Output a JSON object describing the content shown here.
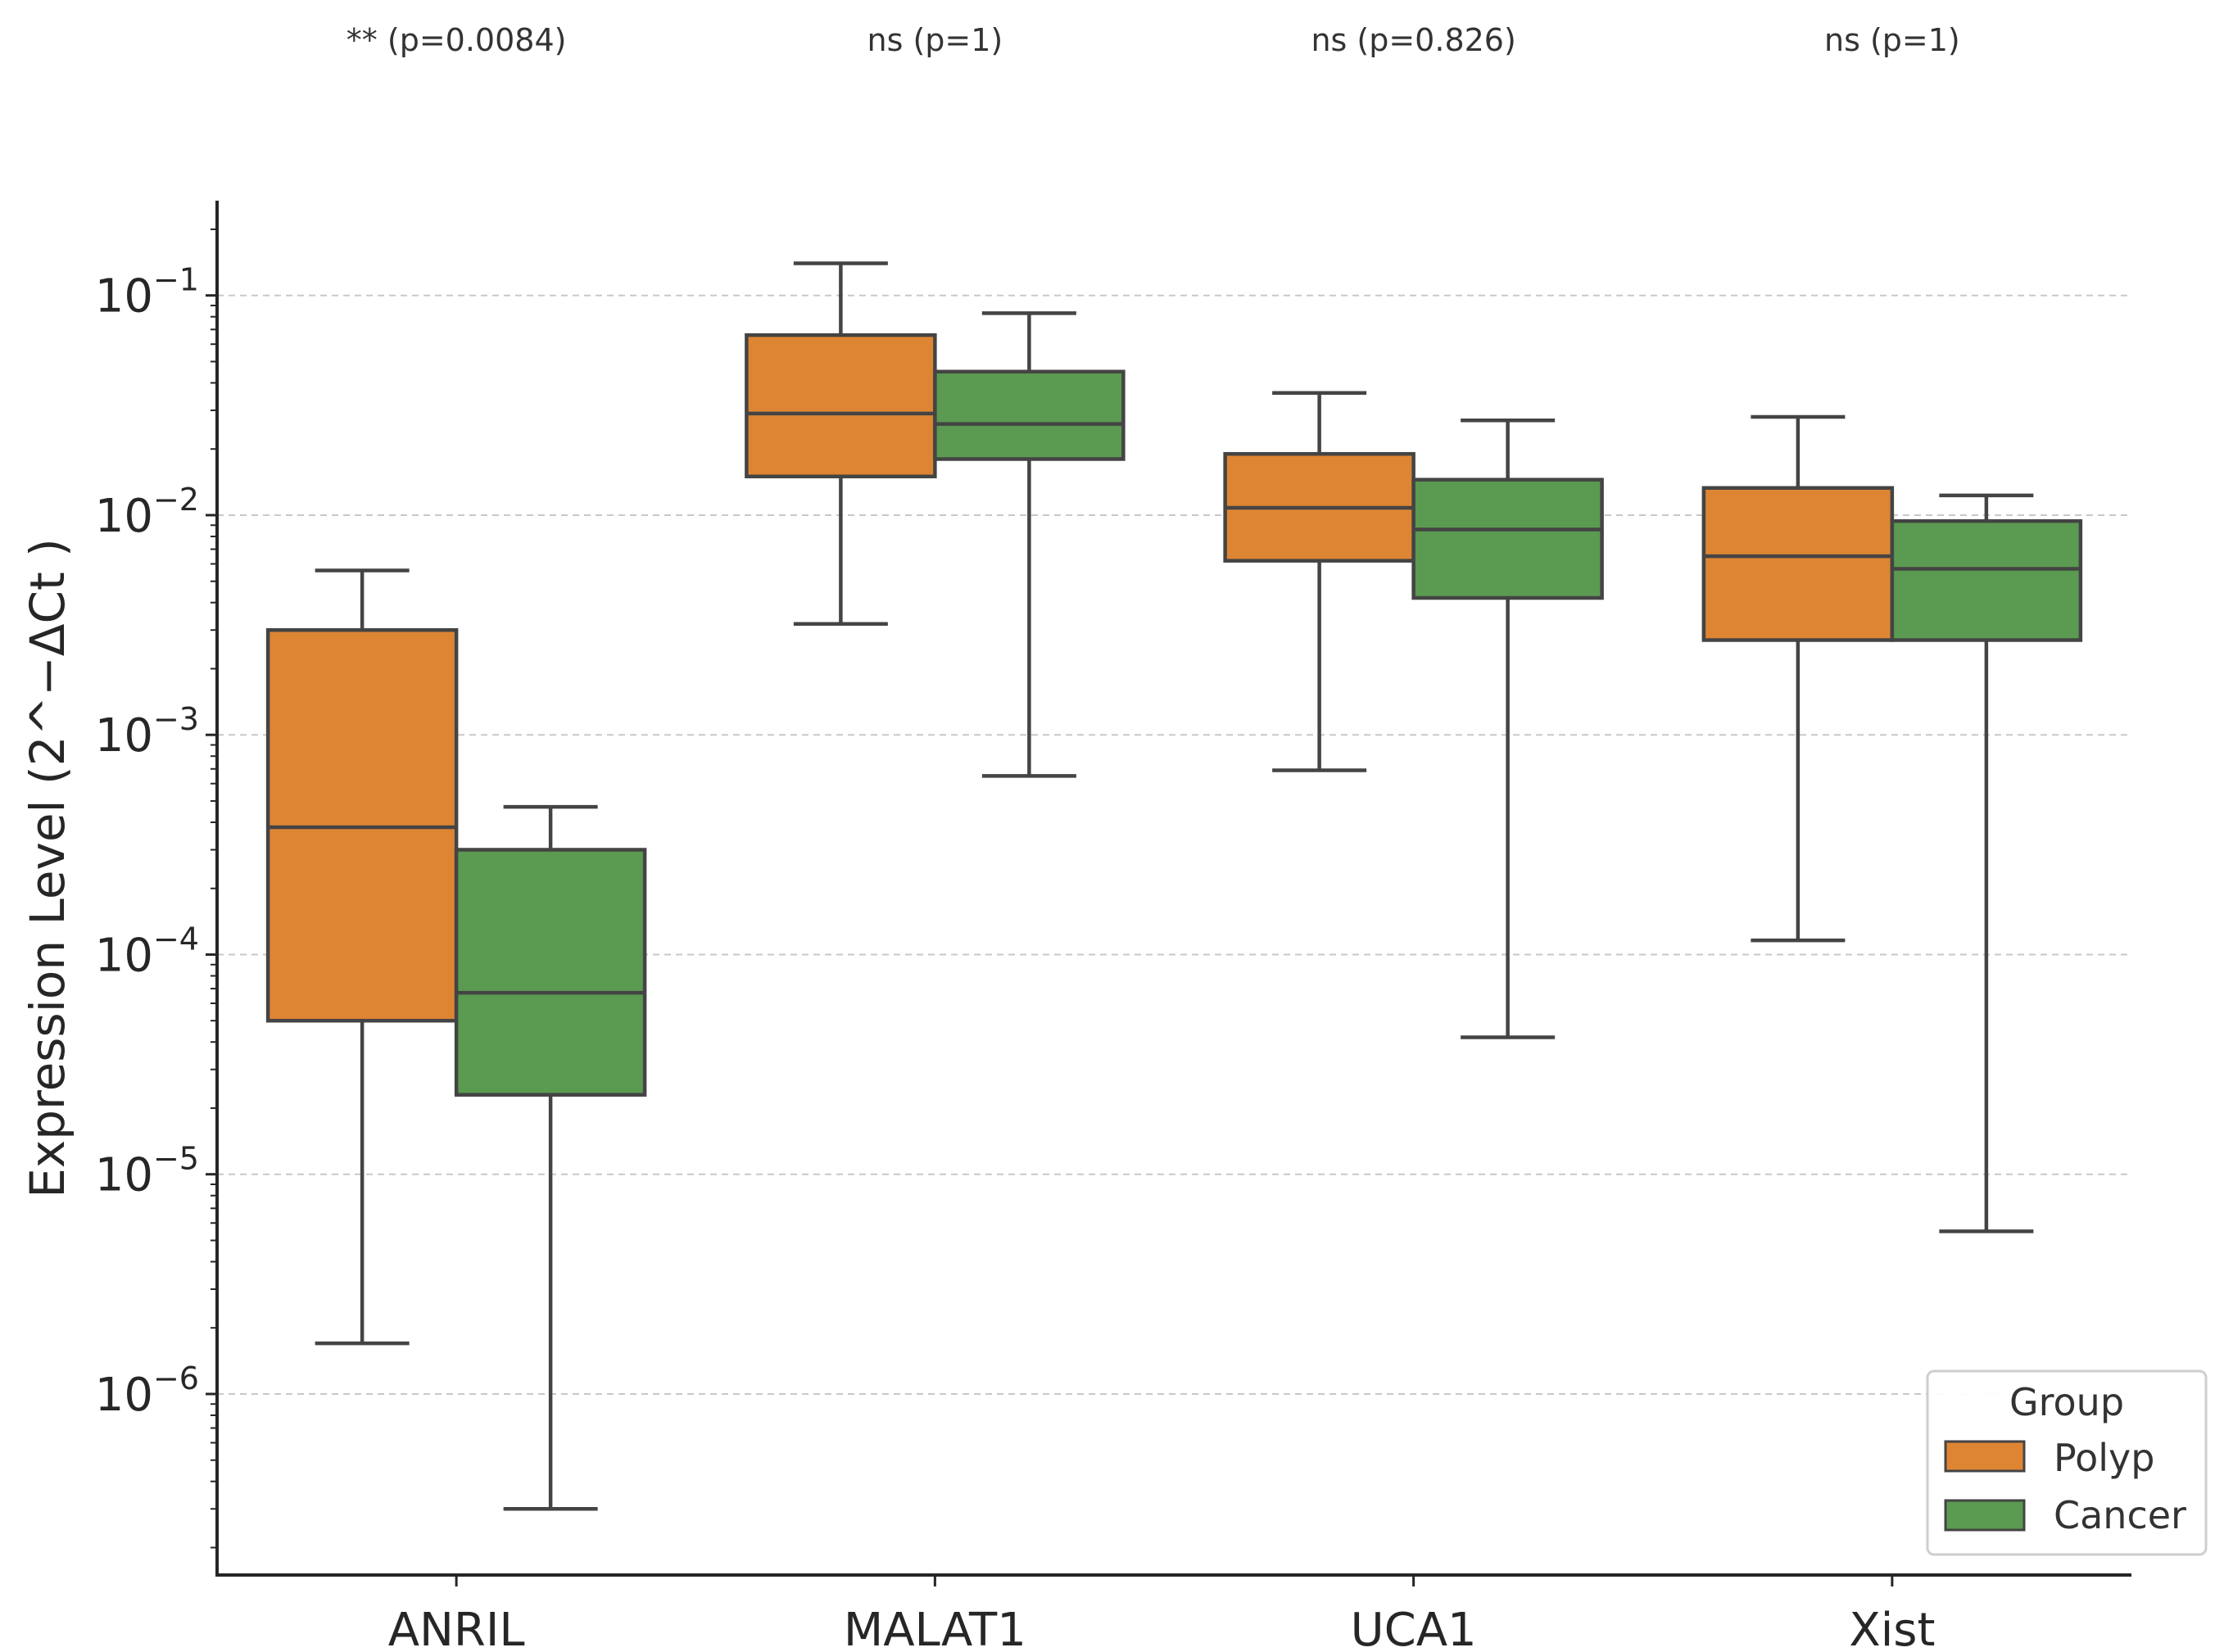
{
  "chart_data": {
    "type": "box",
    "title": "",
    "xlabel": "",
    "ylabel": "Expression Level (2^−ΔCt )",
    "yscale": "log",
    "ylim": [
      1.5e-07,
      0.27
    ],
    "yticks": [
      {
        "base": "10",
        "exp": "−1",
        "value": 0.1
      },
      {
        "base": "10",
        "exp": "−2",
        "value": 0.01
      },
      {
        "base": "10",
        "exp": "−3",
        "value": 0.001
      },
      {
        "base": "10",
        "exp": "−4",
        "value": 0.0001
      },
      {
        "base": "10",
        "exp": "−5",
        "value": 1e-05
      },
      {
        "base": "10",
        "exp": "−6",
        "value": 1e-06
      }
    ],
    "grid": "horizontal-dashed",
    "categories": [
      "ANRIL",
      "MALAT1",
      "UCA1",
      "Xist"
    ],
    "annotations": [
      "** (p=0.0084)",
      "ns (p=1)",
      "ns (p=0.826)",
      "ns (p=1)"
    ],
    "series": [
      {
        "name": "Polyp",
        "color": "#dd8533",
        "boxes": [
          {
            "min": 1.7e-06,
            "q1": 5e-05,
            "median": 0.00038,
            "q3": 0.003,
            "max": 0.0056
          },
          {
            "min": 0.0032,
            "q1": 0.015,
            "median": 0.029,
            "q3": 0.066,
            "max": 0.14
          },
          {
            "min": 0.00069,
            "q1": 0.0062,
            "median": 0.0108,
            "q3": 0.019,
            "max": 0.036
          },
          {
            "min": 0.000116,
            "q1": 0.0027,
            "median": 0.0065,
            "q3": 0.0133,
            "max": 0.028
          }
        ]
      },
      {
        "name": "Cancer",
        "color": "#5b9a51",
        "boxes": [
          {
            "min": 3e-07,
            "q1": 2.3e-05,
            "median": 6.7e-05,
            "q3": 0.0003,
            "max": 0.00047
          },
          {
            "min": 0.00065,
            "q1": 0.018,
            "median": 0.026,
            "q3": 0.045,
            "max": 0.083
          },
          {
            "min": 4.2e-05,
            "q1": 0.0042,
            "median": 0.0086,
            "q3": 0.0145,
            "max": 0.027
          },
          {
            "min": 5.5e-06,
            "q1": 0.0027,
            "median": 0.0057,
            "q3": 0.0094,
            "max": 0.0123
          }
        ]
      }
    ],
    "legend": {
      "title": "Group",
      "position": "bottom-right"
    }
  }
}
